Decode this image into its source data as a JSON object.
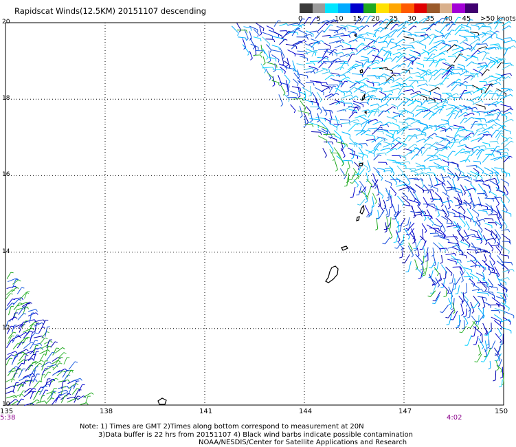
{
  "title": "Rapidscat Winds(12.5KM) 20151107 descending",
  "colorbar": {
    "colors": [
      "#3a3a3a",
      "#9a9a9a",
      "#00e5ff",
      "#00aaff",
      "#0000cd",
      "#1fa81f",
      "#ffe100",
      "#ffa600",
      "#ff5a00",
      "#e00000",
      "#9a5a2a",
      "#d9b08c",
      "#a300d6",
      "#400070"
    ],
    "labels": [
      "0",
      "5",
      "10",
      "15",
      "20",
      "25",
      "30",
      "35",
      "40",
      "45",
      ">50 knots"
    ]
  },
  "map": {
    "lat_labels": [
      "20",
      "18",
      "16",
      "14",
      "12",
      "10"
    ],
    "lon_labels": [
      "135",
      "138",
      "141",
      "144",
      "147",
      "150"
    ],
    "lat_range": [
      10,
      20
    ],
    "lon_range": [
      135,
      150
    ],
    "grid": true
  },
  "times": {
    "left": "5:38",
    "right": "4:02"
  },
  "notes": [
    "Note: 1) Times are GMT 2)Times along bottom correspond to measurement at 20N",
    "3)Data buffer is 22 hrs from 20151107 4) Black wind barbs indicate possible contamination",
    "NOAA/NESDIS/Center for Satellite Applications and Research"
  ]
}
